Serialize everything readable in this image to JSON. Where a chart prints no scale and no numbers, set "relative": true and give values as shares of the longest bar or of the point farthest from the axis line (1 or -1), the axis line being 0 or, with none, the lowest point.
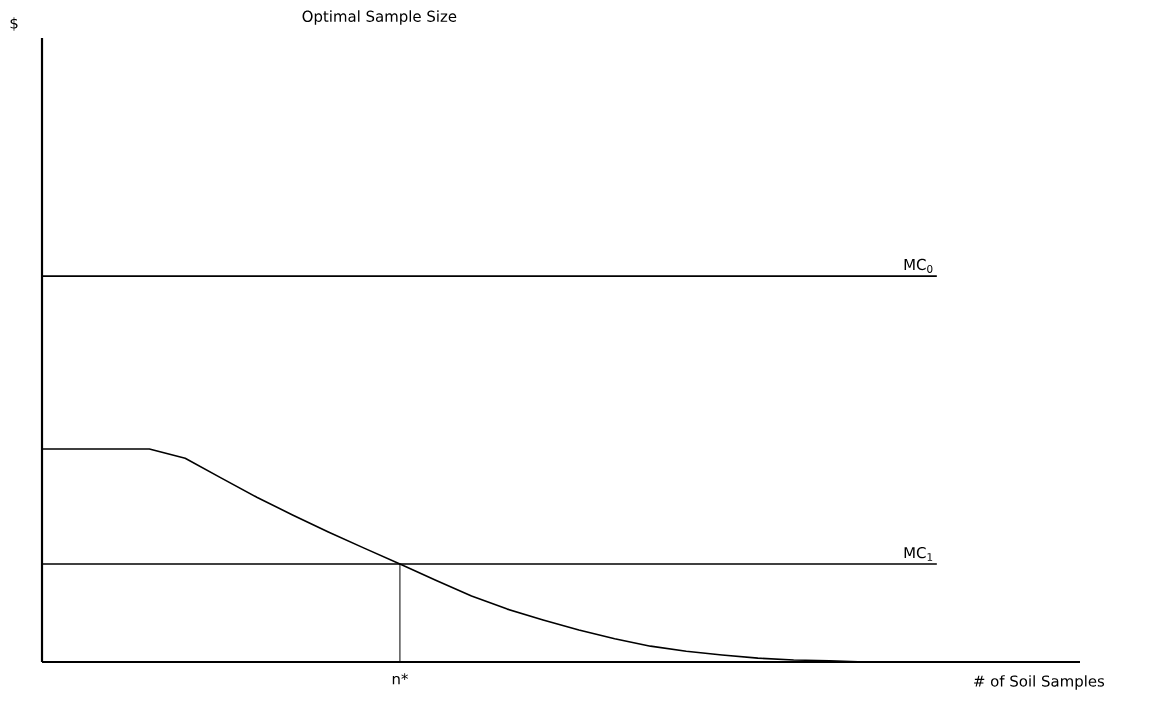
{
  "chart_data": {
    "type": "line",
    "title": "Optimal Sample Size",
    "xlabel": "# of Soil Samples",
    "relative": true,
    "marker": "none",
    "categories": [
      null,
      null,
      null,
      null,
      null,
      null,
      null,
      null,
      null,
      null,
      null,
      null,
      null,
      null,
      null,
      null,
      null,
      null,
      null,
      null,
      null,
      null,
      null,
      null,
      null,
      null,
      null,
      null,
      null,
      null
    ],
    "series": [
      {
        "name": "MC$_{0}$",
        "color": "#000000",
        "values": [
          1,
          1,
          1,
          1,
          1,
          1,
          1,
          1,
          1,
          1,
          1,
          1,
          1,
          1,
          1,
          1,
          1,
          1,
          1,
          1,
          1,
          1,
          1,
          1,
          1,
          1,
          null,
          null,
          null,
          null
        ]
      },
      {
        "name": "MC$_{1}$",
        "color": "#000000",
        "values": [
          0.254,
          0.254,
          0.254,
          0.254,
          0.254,
          0.254,
          0.254,
          0.254,
          0.254,
          0.254,
          0.254,
          0.254,
          0.254,
          0.254,
          0.254,
          0.254,
          0.254,
          0.254,
          0.254,
          0.254,
          0.254,
          0.254,
          0.254,
          0.254,
          0.254,
          0.254,
          null,
          null,
          null,
          null
        ]
      },
      {
        "color": "#000000",
        "values": [
          0.552,
          0.552,
          0.552,
          0.552,
          0.528,
          0.477,
          0.427,
          0.381,
          0.337,
          0.295,
          0.254,
          0.212,
          0.171,
          0.137,
          0.109,
          0.083,
          0.06,
          0.041,
          0.028,
          0.018,
          0.01,
          0.005,
          0.003,
          0,
          null,
          null,
          null,
          null,
          null,
          null
        ]
      }
    ],
    "annotations": [
      "n*",
      "$"
    ]
  }
}
